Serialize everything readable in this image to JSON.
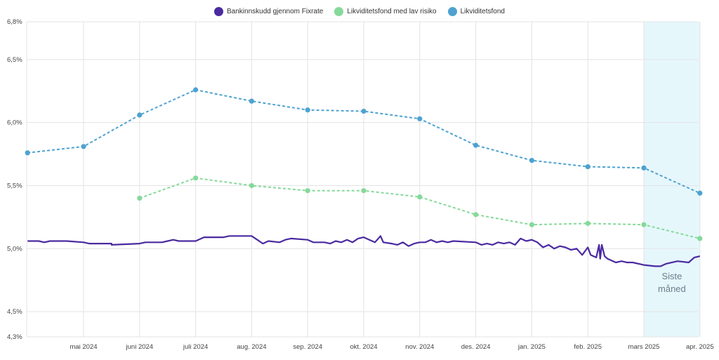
{
  "chart_data": {
    "type": "line",
    "legend": [
      {
        "name": "Bankinnskudd gjennom Fixrate",
        "color": "#4a2aa0"
      },
      {
        "name": "Likviditetsfond med lav risiko",
        "color": "#86d99a"
      },
      {
        "name": "Likviditetsfond",
        "color": "#4ea2d0"
      }
    ],
    "y_ticks": [
      "4,3%",
      "4,5%",
      "5,0%",
      "5,5%",
      "6,0%",
      "6,5%",
      "6,8%"
    ],
    "y_tick_values": [
      4.3,
      4.5,
      5.0,
      5.5,
      6.0,
      6.5,
      6.8
    ],
    "ylim": [
      4.3,
      6.8
    ],
    "x_ticks": [
      "mai 2024",
      "juni 2024",
      "juli 2024",
      "aug. 2024",
      "sep. 2024",
      "okt. 2024",
      "nov. 2024",
      "des. 2024",
      "jan. 2025",
      "feb. 2025",
      "mars 2025",
      "apr. 2025"
    ],
    "highlight": {
      "label_line1": "Siste",
      "label_line2": "måned",
      "from_index": 10,
      "to_index": 11
    },
    "series": [
      {
        "name": "Likviditetsfond",
        "style": "dashed",
        "color": "#4ea2d0",
        "points": [
          [
            -1,
            5.76
          ],
          [
            0,
            5.81
          ],
          [
            1,
            6.06
          ],
          [
            2,
            6.26
          ],
          [
            3,
            6.17
          ],
          [
            4,
            6.1
          ],
          [
            5,
            6.09
          ],
          [
            6,
            6.03
          ],
          [
            7,
            5.82
          ],
          [
            8,
            5.7
          ],
          [
            9,
            5.65
          ],
          [
            10,
            5.64
          ],
          [
            11,
            5.44
          ]
        ]
      },
      {
        "name": "Likviditetsfond med lav risiko",
        "style": "dashed",
        "color": "#86d99a",
        "points": [
          [
            1,
            5.4
          ],
          [
            2,
            5.56
          ],
          [
            3,
            5.5
          ],
          [
            4,
            5.46
          ],
          [
            5,
            5.46
          ],
          [
            6,
            5.41
          ],
          [
            7,
            5.27
          ],
          [
            8,
            5.19
          ],
          [
            9,
            5.2
          ],
          [
            10,
            5.19
          ],
          [
            11,
            5.08
          ]
        ]
      },
      {
        "name": "Bankinnskudd gjennom Fixrate",
        "style": "solid",
        "color": "#4a2aa0",
        "points": [
          [
            -1,
            5.06
          ],
          [
            -0.8,
            5.06
          ],
          [
            -0.7,
            5.05
          ],
          [
            -0.6,
            5.06
          ],
          [
            -0.3,
            5.06
          ],
          [
            0,
            5.05
          ],
          [
            0.1,
            5.04
          ],
          [
            0.5,
            5.04
          ],
          [
            0.5,
            5.03
          ],
          [
            1,
            5.04
          ],
          [
            1.1,
            5.05
          ],
          [
            1.4,
            5.05
          ],
          [
            1.5,
            5.06
          ],
          [
            1.6,
            5.07
          ],
          [
            1.7,
            5.06
          ],
          [
            2,
            5.06
          ],
          [
            2.15,
            5.09
          ],
          [
            2.5,
            5.09
          ],
          [
            2.6,
            5.1
          ],
          [
            3,
            5.1
          ],
          [
            3.1,
            5.07
          ],
          [
            3.2,
            5.04
          ],
          [
            3.3,
            5.06
          ],
          [
            3.5,
            5.05
          ],
          [
            3.6,
            5.07
          ],
          [
            3.7,
            5.08
          ],
          [
            4,
            5.07
          ],
          [
            4.1,
            5.05
          ],
          [
            4.3,
            5.05
          ],
          [
            4.4,
            5.04
          ],
          [
            4.5,
            5.06
          ],
          [
            4.6,
            5.05
          ],
          [
            4.7,
            5.07
          ],
          [
            4.8,
            5.05
          ],
          [
            4.9,
            5.08
          ],
          [
            5,
            5.09
          ],
          [
            5.1,
            5.07
          ],
          [
            5.2,
            5.05
          ],
          [
            5.3,
            5.1
          ],
          [
            5.35,
            5.05
          ],
          [
            5.5,
            5.04
          ],
          [
            5.6,
            5.03
          ],
          [
            5.7,
            5.05
          ],
          [
            5.8,
            5.02
          ],
          [
            5.9,
            5.04
          ],
          [
            6,
            5.05
          ],
          [
            6.1,
            5.05
          ],
          [
            6.2,
            5.07
          ],
          [
            6.3,
            5.05
          ],
          [
            6.4,
            5.06
          ],
          [
            6.5,
            5.05
          ],
          [
            6.6,
            5.06
          ],
          [
            7,
            5.05
          ],
          [
            7.1,
            5.03
          ],
          [
            7.2,
            5.04
          ],
          [
            7.3,
            5.03
          ],
          [
            7.4,
            5.05
          ],
          [
            7.5,
            5.04
          ],
          [
            7.6,
            5.05
          ],
          [
            7.7,
            5.03
          ],
          [
            7.8,
            5.08
          ],
          [
            7.9,
            5.06
          ],
          [
            8,
            5.07
          ],
          [
            8.1,
            5.05
          ],
          [
            8.2,
            5.01
          ],
          [
            8.3,
            5.03
          ],
          [
            8.4,
            5.0
          ],
          [
            8.5,
            5.02
          ],
          [
            8.6,
            5.01
          ],
          [
            8.7,
            4.99
          ],
          [
            8.8,
            5.0
          ],
          [
            8.9,
            4.95
          ],
          [
            9,
            5.01
          ],
          [
            9.05,
            4.95
          ],
          [
            9.15,
            4.93
          ],
          [
            9.2,
            5.03
          ],
          [
            9.22,
            4.92
          ],
          [
            9.25,
            5.03
          ],
          [
            9.3,
            4.94
          ],
          [
            9.35,
            4.92
          ],
          [
            9.5,
            4.89
          ],
          [
            9.6,
            4.9
          ],
          [
            9.7,
            4.89
          ],
          [
            9.8,
            4.89
          ],
          [
            10,
            4.87
          ],
          [
            10.2,
            4.86
          ],
          [
            10.3,
            4.86
          ],
          [
            10.4,
            4.88
          ],
          [
            10.6,
            4.9
          ],
          [
            10.8,
            4.89
          ],
          [
            10.9,
            4.93
          ],
          [
            11,
            4.94
          ]
        ]
      }
    ],
    "grid": true
  }
}
